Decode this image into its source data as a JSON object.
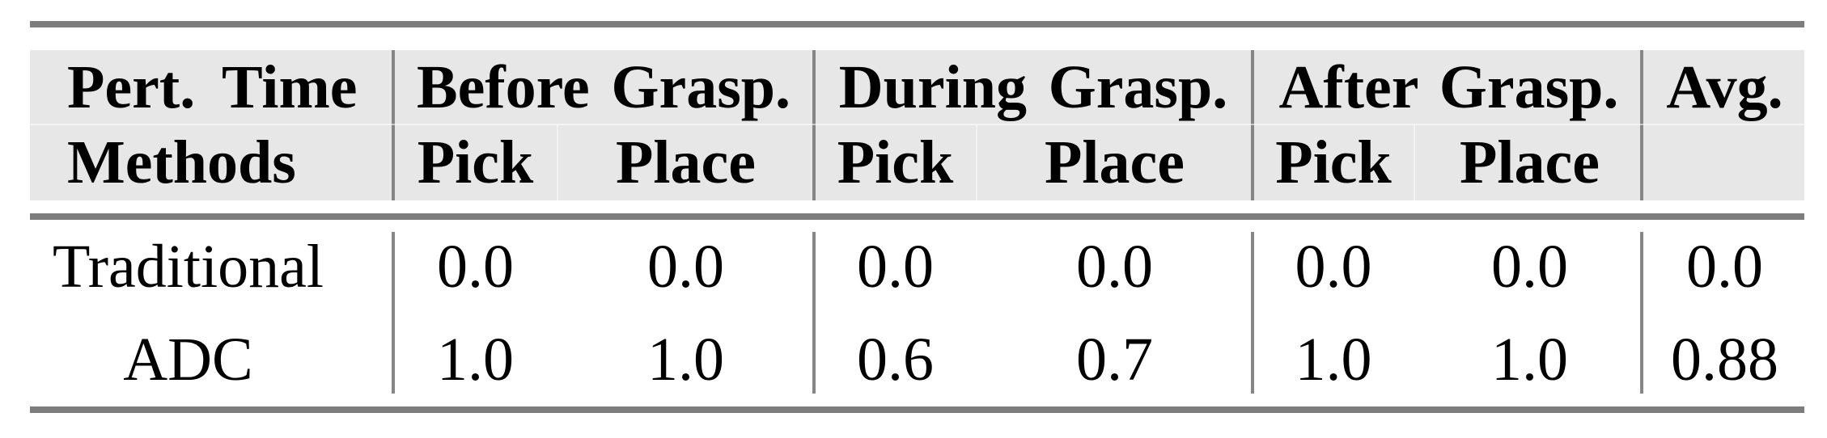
{
  "table": {
    "header": {
      "col1_row1": "Pert. Time",
      "col1_row2": "Methods",
      "groups": [
        {
          "label": "Before Grasp.",
          "sub": [
            "Pick",
            "Place"
          ]
        },
        {
          "label": "During Grasp.",
          "sub": [
            "Pick",
            "Place"
          ]
        },
        {
          "label": "After Grasp.",
          "sub": [
            "Pick",
            "Place"
          ]
        }
      ],
      "avg_label": "Avg."
    },
    "rows": [
      {
        "method": "Traditional",
        "values": [
          "0.0",
          "0.0",
          "0.0",
          "0.0",
          "0.0",
          "0.0",
          "0.0"
        ]
      },
      {
        "method": "ADC",
        "values": [
          "1.0",
          "1.0",
          "0.6",
          "0.7",
          "1.0",
          "1.0",
          "0.88"
        ]
      }
    ],
    "colors": {
      "header_background": "#e7e7e7",
      "rule_gray": "#7d7d7d",
      "separator_gray": "#868686",
      "text": "#000000",
      "page_background": "#ffffff"
    }
  }
}
